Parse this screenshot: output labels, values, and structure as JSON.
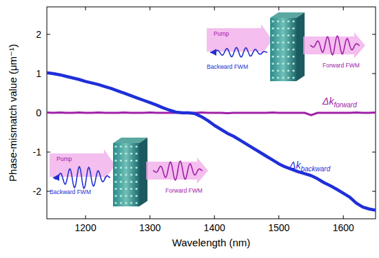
{
  "chart_data": {
    "type": "line",
    "x_label": "Wavelength (nm)",
    "y_label": "Phase-mismatch value (μm⁻¹)",
    "x": [
      1140,
      1150,
      1160,
      1170,
      1180,
      1190,
      1200,
      1210,
      1220,
      1230,
      1240,
      1250,
      1260,
      1270,
      1280,
      1290,
      1300,
      1310,
      1320,
      1330,
      1340,
      1350,
      1360,
      1370,
      1380,
      1390,
      1400,
      1410,
      1420,
      1430,
      1440,
      1450,
      1460,
      1470,
      1480,
      1490,
      1500,
      1510,
      1520,
      1530,
      1540,
      1550,
      1560,
      1570,
      1580,
      1590,
      1600,
      1610,
      1620,
      1630,
      1640,
      1650
    ],
    "series": [
      {
        "name": "Δk",
        "subscript": "forward",
        "color": "#a020a8",
        "values": [
          0.01,
          0.0,
          0.01,
          0.0,
          0.0,
          0.01,
          0.0,
          0.0,
          0.01,
          0.0,
          0.0,
          0.0,
          0.01,
          0.0,
          0.0,
          0.0,
          0.01,
          0.0,
          0.0,
          0.0,
          0.0,
          0.0,
          0.0,
          0.0,
          0.01,
          0.0,
          0.0,
          0.0,
          -0.01,
          0.0,
          0.0,
          0.0,
          0.0,
          0.0,
          0.0,
          0.01,
          0.0,
          0.0,
          0.0,
          0.0,
          0.0,
          -0.06,
          0.0,
          0.0,
          0.0,
          0.0,
          0.0,
          0.0,
          0.01,
          0.0,
          0.0,
          0.01
        ]
      },
      {
        "name": "Δk",
        "subscript": "backward",
        "color": "#1f2fd8",
        "values": [
          1.02,
          1.0,
          0.97,
          0.93,
          0.89,
          0.85,
          0.8,
          0.76,
          0.72,
          0.67,
          0.62,
          0.56,
          0.5,
          0.44,
          0.38,
          0.32,
          0.26,
          0.2,
          0.13,
          0.07,
          0.02,
          0.0,
          0.0,
          -0.02,
          -0.1,
          -0.2,
          -0.32,
          -0.42,
          -0.52,
          -0.6,
          -0.7,
          -0.8,
          -0.9,
          -1.0,
          -1.1,
          -1.2,
          -1.3,
          -1.38,
          -1.44,
          -1.5,
          -1.55,
          -1.6,
          -1.68,
          -1.78,
          -1.86,
          -1.95,
          -2.05,
          -2.15,
          -2.3,
          -2.4,
          -2.45,
          -2.48
        ]
      }
    ],
    "xlim": [
      1140,
      1650
    ],
    "ylim": [
      -2.7,
      2.7
    ],
    "xticks": [
      1200,
      1300,
      1400,
      1500,
      1600
    ],
    "yticks": [
      -2,
      -1,
      0,
      1,
      2
    ],
    "grid": false,
    "insets": [
      {
        "pump": "Pump",
        "backward": "Backward FWM",
        "forward": "Forward FWM"
      },
      {
        "pump": "Pump",
        "backward": "Backward FWM",
        "forward": "Forward FWM"
      }
    ]
  }
}
